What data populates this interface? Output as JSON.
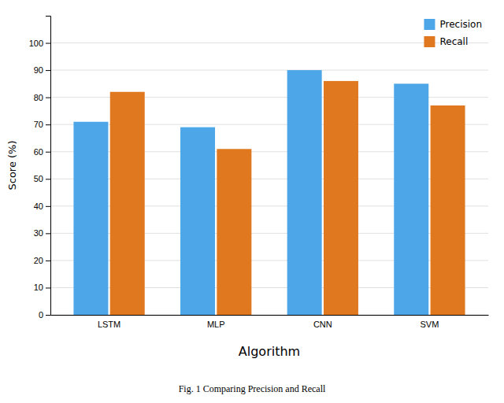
{
  "chart_data": {
    "type": "bar",
    "categories": [
      "LSTM",
      "MLP",
      "CNN",
      "SVM"
    ],
    "series": [
      {
        "name": "Precision",
        "color": "#4DA6E8",
        "values": [
          71,
          69,
          90,
          85
        ]
      },
      {
        "name": "Recall",
        "color": "#E07820",
        "values": [
          82,
          61,
          86,
          77
        ]
      }
    ],
    "xlabel": "Algorithm",
    "ylabel": "Score (%)",
    "caption": "Fig. 1   Comparing Precision and Recall",
    "ylim": [
      0,
      110
    ],
    "yticks": [
      0,
      10,
      20,
      30,
      40,
      50,
      60,
      70,
      80,
      90,
      100
    ],
    "grid": true,
    "legend": "upper right"
  }
}
